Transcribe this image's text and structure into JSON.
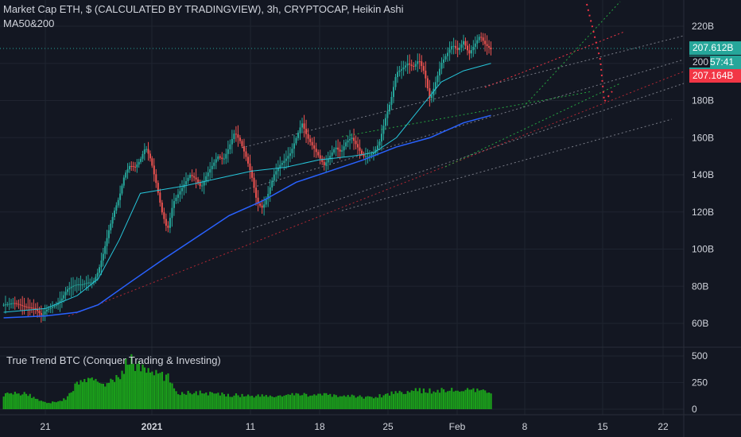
{
  "header": {
    "title": "Market Cap ETH, $ (CALCULATED BY TRADINGVIEW), 3h, CRYPTOCAP, Heikin Ashi",
    "indicator": "MA50&200",
    "pane2_title": "True Trend BTC (Conquer Trading & Investing)"
  },
  "price_tags": {
    "last": "207.612B",
    "countdown_prefix": "200",
    "countdown": "57:41",
    "other": "207.164B"
  },
  "colors": {
    "background": "#131722",
    "up": "#26a69a",
    "down": "#ef5350",
    "ma50": "#26c6da",
    "ma200": "#2962ff",
    "volume": "#1b9e1b",
    "tag_teal": "#26a69a",
    "tag_red": "#f23645"
  },
  "chart_data": [
    {
      "type": "candlestick",
      "title": "Market Cap ETH, $ (CALCULATED BY TRADINGVIEW), 3h, CRYPTOCAP, Heikin Ashi",
      "x_ticks": [
        "21",
        "2021",
        "11",
        "18",
        "25",
        "Feb",
        "8",
        "15",
        "22"
      ],
      "y_ticks": [
        "60B",
        "80B",
        "100B",
        "120B",
        "140B",
        "160B",
        "180B",
        "200B",
        "220B"
      ],
      "y_tick_values": [
        60,
        80,
        100,
        120,
        140,
        160,
        180,
        200,
        220
      ],
      "ylim": [
        54,
        230
      ],
      "x_days": [
        "21",
        "2021",
        "11",
        "18",
        "25",
        "Feb",
        "8",
        "15",
        "22"
      ],
      "close_path": [
        [
          0,
          70
        ],
        [
          2,
          71
        ],
        [
          4,
          69
        ],
        [
          6,
          68
        ],
        [
          7.3,
          64
        ],
        [
          8,
          67
        ],
        [
          10,
          70
        ],
        [
          11,
          73
        ],
        [
          12,
          78
        ],
        [
          13,
          80
        ],
        [
          14,
          81
        ],
        [
          15,
          81
        ],
        [
          16,
          82
        ],
        [
          17,
          82
        ],
        [
          18,
          88
        ],
        [
          19,
          98
        ],
        [
          20,
          110
        ],
        [
          21,
          120
        ],
        [
          22,
          128
        ],
        [
          23,
          140
        ],
        [
          24,
          145
        ],
        [
          25,
          144
        ],
        [
          26,
          148
        ],
        [
          27,
          155
        ],
        [
          28,
          148
        ],
        [
          29,
          135
        ],
        [
          30,
          120
        ],
        [
          31,
          110
        ],
        [
          32,
          125
        ],
        [
          33,
          130
        ],
        [
          34,
          135
        ],
        [
          35,
          140
        ],
        [
          36,
          138
        ],
        [
          37,
          133
        ],
        [
          38,
          140
        ],
        [
          39,
          145
        ],
        [
          40,
          150
        ],
        [
          41,
          148
        ],
        [
          42,
          155
        ],
        [
          43,
          163
        ],
        [
          44,
          158
        ],
        [
          45,
          150
        ],
        [
          46,
          140
        ],
        [
          47,
          125
        ],
        [
          48,
          122
        ],
        [
          49,
          130
        ],
        [
          50,
          140
        ],
        [
          51,
          145
        ],
        [
          52,
          148
        ],
        [
          53,
          152
        ],
        [
          54,
          160
        ],
        [
          55,
          168
        ],
        [
          56,
          160
        ],
        [
          57,
          155
        ],
        [
          58,
          150
        ],
        [
          59,
          145
        ],
        [
          60,
          150
        ],
        [
          61,
          155
        ],
        [
          62,
          152
        ],
        [
          63,
          158
        ],
        [
          64,
          160
        ],
        [
          65,
          155
        ],
        [
          66,
          150
        ],
        [
          67,
          150
        ],
        [
          68,
          152
        ],
        [
          69,
          158
        ],
        [
          70,
          170
        ],
        [
          71,
          180
        ],
        [
          72,
          195
        ],
        [
          73,
          197
        ],
        [
          74,
          200
        ],
        [
          75,
          198
        ],
        [
          76,
          202
        ],
        [
          77,
          195
        ],
        [
          78,
          180
        ],
        [
          79,
          190
        ],
        [
          80,
          200
        ],
        [
          81,
          205
        ],
        [
          82,
          210
        ],
        [
          83,
          207
        ],
        [
          84,
          212
        ],
        [
          85,
          205
        ],
        [
          86,
          210
        ],
        [
          87,
          215
        ],
        [
          88,
          210
        ],
        [
          89,
          207.6
        ]
      ],
      "ma50": [
        [
          0,
          66
        ],
        [
          8,
          68
        ],
        [
          14,
          75
        ],
        [
          18,
          84
        ],
        [
          22,
          105
        ],
        [
          26,
          130
        ],
        [
          30,
          132
        ],
        [
          34,
          134
        ],
        [
          40,
          138
        ],
        [
          46,
          142
        ],
        [
          52,
          144
        ],
        [
          58,
          148
        ],
        [
          64,
          150
        ],
        [
          68,
          152
        ],
        [
          72,
          160
        ],
        [
          76,
          175
        ],
        [
          80,
          190
        ],
        [
          84,
          196
        ],
        [
          89,
          200
        ]
      ],
      "ma200": [
        [
          0,
          63
        ],
        [
          8,
          64
        ],
        [
          14,
          66
        ],
        [
          18,
          70
        ],
        [
          24,
          82
        ],
        [
          30,
          94
        ],
        [
          36,
          106
        ],
        [
          42,
          118
        ],
        [
          48,
          126
        ],
        [
          54,
          136
        ],
        [
          60,
          142
        ],
        [
          66,
          148
        ],
        [
          72,
          155
        ],
        [
          78,
          160
        ],
        [
          84,
          168
        ],
        [
          89,
          172
        ]
      ]
    },
    {
      "type": "bar",
      "title": "True Trend BTC (Conquer Trading & Investing)",
      "y_ticks": [
        "0",
        "250",
        "500"
      ],
      "y_tick_values": [
        0,
        250,
        500
      ],
      "ylim": [
        0,
        520
      ],
      "values_path": [
        [
          0,
          140
        ],
        [
          4,
          150
        ],
        [
          7,
          80
        ],
        [
          9,
          60
        ],
        [
          12,
          100
        ],
        [
          14,
          250
        ],
        [
          16,
          270
        ],
        [
          18,
          260
        ],
        [
          20,
          240
        ],
        [
          22,
          300
        ],
        [
          23,
          400
        ],
        [
          24,
          480
        ],
        [
          25,
          420
        ],
        [
          27,
          370
        ],
        [
          29,
          330
        ],
        [
          31,
          300
        ],
        [
          33,
          150
        ],
        [
          35,
          160
        ],
        [
          40,
          140
        ],
        [
          45,
          130
        ],
        [
          50,
          120
        ],
        [
          55,
          140
        ],
        [
          60,
          130
        ],
        [
          65,
          120
        ],
        [
          68,
          110
        ],
        [
          70,
          140
        ],
        [
          72,
          160
        ],
        [
          75,
          175
        ],
        [
          78,
          170
        ],
        [
          80,
          180
        ],
        [
          84,
          175
        ],
        [
          89,
          165
        ]
      ]
    }
  ]
}
